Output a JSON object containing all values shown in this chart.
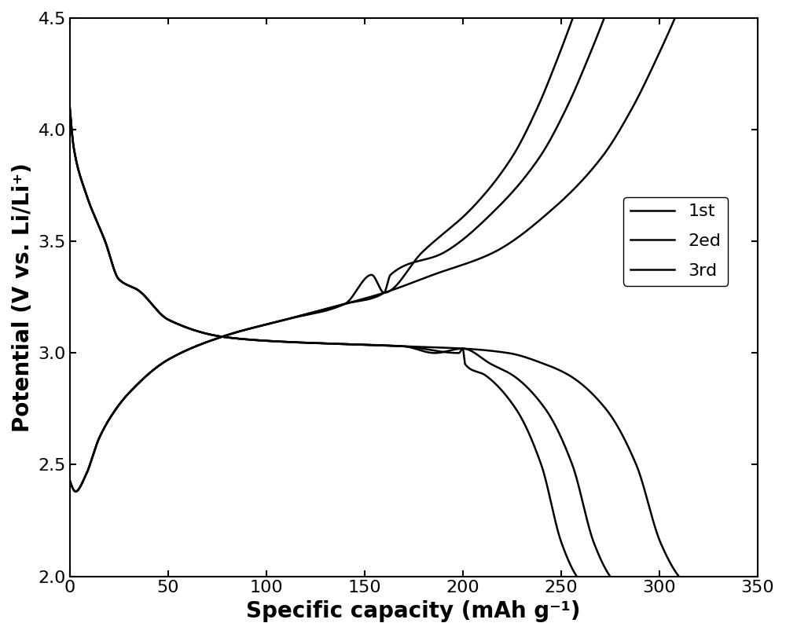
{
  "xlabel": "Specific capacity (mAh g⁻¹)",
  "ylabel": "Potential (V vs. Li/Li⁺)",
  "xlim": [
    0,
    350
  ],
  "ylim": [
    2.0,
    4.5
  ],
  "xticks": [
    0,
    50,
    100,
    150,
    200,
    250,
    300,
    350
  ],
  "yticks": [
    2.0,
    2.5,
    3.0,
    3.5,
    4.0,
    4.5
  ],
  "line_color": "#000000",
  "linewidth": 1.8,
  "legend_labels": [
    "1st",
    "2ed",
    "3rd"
  ],
  "disc_caps": [
    310,
    275,
    258
  ],
  "chg_caps": [
    308,
    272,
    256
  ]
}
